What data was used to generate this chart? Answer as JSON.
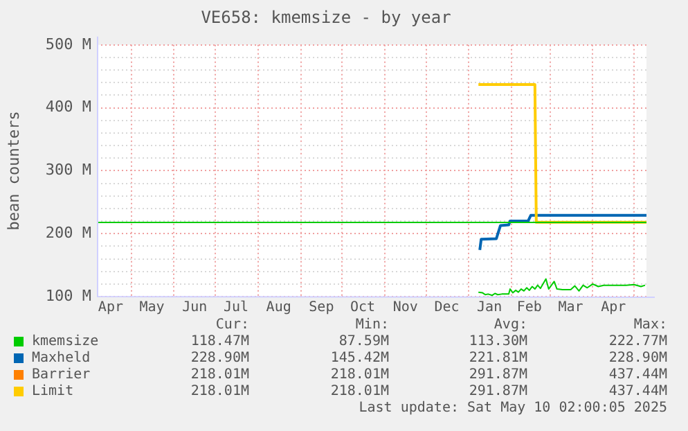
{
  "chart_data": {
    "type": "line",
    "title": "VE658: kmemsize - by year",
    "ylabel": "bean counters",
    "xlim": [
      "2024-04-06",
      "2025-05-10"
    ],
    "xticks": [
      {
        "value": "2024-04-16",
        "label": "Apr"
      },
      {
        "value": "2024-05-01",
        "label": null
      },
      {
        "value": "2024-05-16",
        "label": "May"
      },
      {
        "value": "2024-06-01",
        "label": null
      },
      {
        "value": "2024-06-16",
        "label": "Jun"
      },
      {
        "value": "2024-07-01",
        "label": null
      },
      {
        "value": "2024-07-16",
        "label": "Jul"
      },
      {
        "value": "2024-08-01",
        "label": null
      },
      {
        "value": "2024-08-16",
        "label": "Aug"
      },
      {
        "value": "2024-09-01",
        "label": null
      },
      {
        "value": "2024-09-16",
        "label": "Sep"
      },
      {
        "value": "2024-10-01",
        "label": null
      },
      {
        "value": "2024-10-16",
        "label": "Oct"
      },
      {
        "value": "2024-11-01",
        "label": null
      },
      {
        "value": "2024-11-16",
        "label": "Nov"
      },
      {
        "value": "2024-12-01",
        "label": null
      },
      {
        "value": "2024-12-16",
        "label": "Dec"
      },
      {
        "value": "2025-01-01",
        "label": null
      },
      {
        "value": "2025-01-16",
        "label": "Jan"
      },
      {
        "value": "2025-02-01",
        "label": null
      },
      {
        "value": "2025-02-14",
        "label": "Feb"
      },
      {
        "value": "2025-03-01",
        "label": null
      },
      {
        "value": "2025-03-16",
        "label": "Mar"
      },
      {
        "value": "2025-04-01",
        "label": null
      },
      {
        "value": "2025-04-16",
        "label": "Apr"
      },
      {
        "value": "2025-05-01",
        "label": null
      }
    ],
    "ylim": [
      100,
      500
    ],
    "yticks": [
      {
        "value": 100,
        "label": "100 M"
      },
      {
        "value": 120,
        "label": null
      },
      {
        "value": 140,
        "label": null
      },
      {
        "value": 160,
        "label": null
      },
      {
        "value": 180,
        "label": null
      },
      {
        "value": 200,
        "label": "200 M"
      },
      {
        "value": 220,
        "label": null
      },
      {
        "value": 240,
        "label": null
      },
      {
        "value": 260,
        "label": null
      },
      {
        "value": 280,
        "label": null
      },
      {
        "value": 300,
        "label": "300 M"
      },
      {
        "value": 320,
        "label": null
      },
      {
        "value": 340,
        "label": null
      },
      {
        "value": 360,
        "label": null
      },
      {
        "value": 380,
        "label": null
      },
      {
        "value": 400,
        "label": "400 M"
      },
      {
        "value": 420,
        "label": null
      },
      {
        "value": 440,
        "label": null
      },
      {
        "value": 460,
        "label": null
      },
      {
        "value": 480,
        "label": null
      },
      {
        "value": 500,
        "label": "500 M"
      }
    ],
    "grid": true,
    "legend": "bottom",
    "marker": "none",
    "series": [
      {
        "name": "kmemsize",
        "color": "#00cc00",
        "x": [
          "2025-01-08",
          "2025-01-11",
          "2025-01-13",
          "2025-01-15",
          "2025-01-18",
          "2025-01-20",
          "2025-01-22",
          "2025-01-25",
          "2025-01-30",
          "2025-01-31",
          "2025-02-02",
          "2025-02-04",
          "2025-02-06",
          "2025-02-08",
          "2025-02-10",
          "2025-02-12",
          "2025-02-14",
          "2025-02-16",
          "2025-02-18",
          "2025-02-20",
          "2025-02-22",
          "2025-02-26",
          "2025-02-28",
          "2025-03-02",
          "2025-03-04",
          "2025-03-06",
          "2025-03-10",
          "2025-03-16",
          "2025-03-19",
          "2025-03-22",
          "2025-03-25",
          "2025-03-28",
          "2025-04-01",
          "2025-04-05",
          "2025-04-09",
          "2025-04-13",
          "2025-04-19",
          "2025-04-25",
          "2025-05-01",
          "2025-05-06",
          "2025-05-09"
        ],
        "values": [
          107,
          106,
          103,
          104,
          102,
          105,
          103,
          104,
          104,
          112,
          106,
          110,
          107,
          112,
          109,
          114,
          110,
          116,
          112,
          118,
          113,
          128,
          112,
          118,
          124,
          112,
          111,
          111,
          117,
          109,
          118,
          114,
          120,
          116,
          118,
          118,
          118,
          118,
          119,
          116,
          118
        ]
      },
      {
        "name": "Maxheld",
        "color": "#0066b3",
        "x": [
          "2025-01-09",
          "2025-01-10",
          "2025-01-21",
          "2025-01-24",
          "2025-01-30",
          "2025-01-31",
          "2025-02-13",
          "2025-02-15",
          "2025-05-10"
        ],
        "values": [
          174,
          191,
          192,
          213,
          214,
          220,
          220,
          229,
          229
        ]
      },
      {
        "name": "Barrier",
        "color": "#ff8000"
      },
      {
        "name": "Limit",
        "color": "#ffcc00",
        "x": [
          "2025-01-08",
          "2025-02-18",
          "2025-02-19",
          "2025-05-10"
        ],
        "values": [
          437,
          437,
          218,
          218
        ]
      }
    ],
    "ref_lines": [
      {
        "axis": "y",
        "value": 218,
        "color": "#00cc00"
      }
    ],
    "annotations": [
      "Cur:",
      "Min:",
      "Avg:",
      "Max:",
      "118.47M",
      "87.59M",
      "113.30M",
      "222.77M",
      "228.90M",
      "145.42M",
      "221.81M",
      "228.90M",
      "218.01M",
      "218.01M",
      "291.87M",
      "437.44M",
      "218.01M",
      "218.01M",
      "291.87M",
      "437.44M",
      "Last update: Sat May 10 02:00:05 2025"
    ]
  }
}
